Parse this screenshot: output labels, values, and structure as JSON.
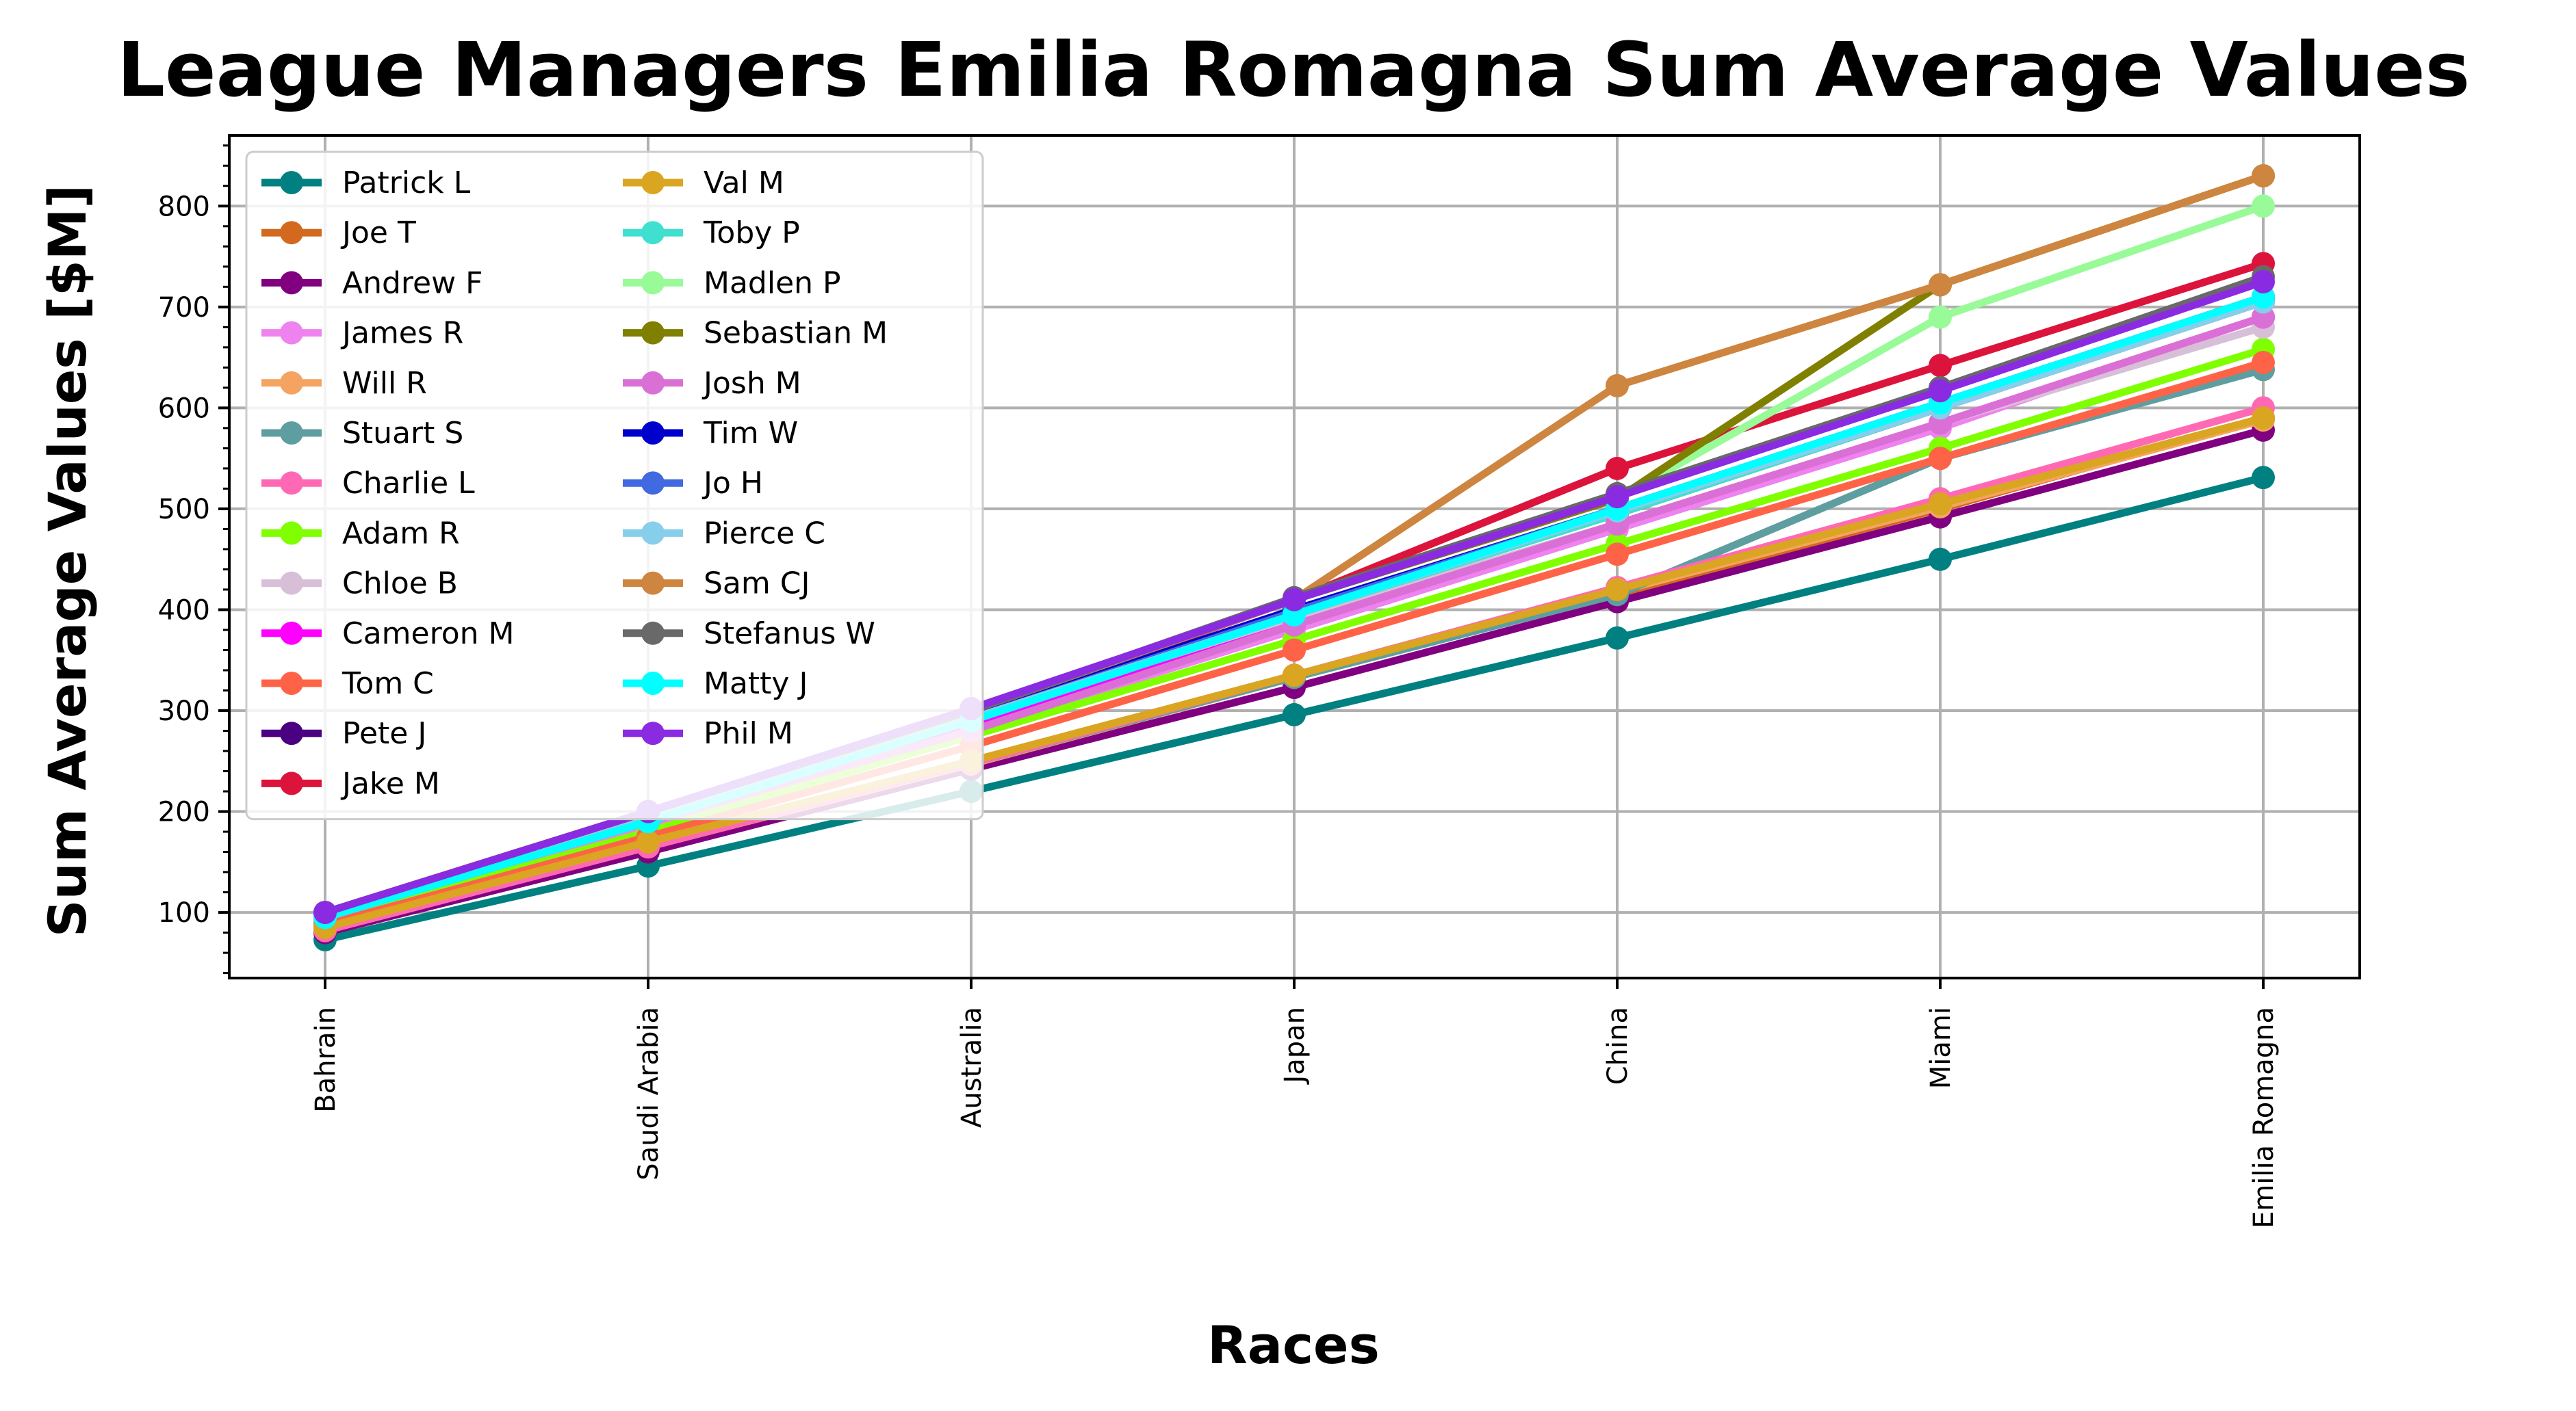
{
  "chart_data": {
    "type": "line",
    "title": "League Managers Emilia Romagna Sum Average Values",
    "xlabel": "Races",
    "ylabel": "Sum Average Values [$M]",
    "x": [
      "Bahrain",
      "Saudi Arabia",
      "Australia",
      "Japan",
      "China",
      "Miami",
      "Emilia Romagna"
    ],
    "ylim": [
      35,
      870
    ],
    "yticks": [
      100,
      200,
      300,
      400,
      500,
      600,
      700,
      800
    ],
    "grid": true,
    "legend_position": "upper-left",
    "legend_columns": 2,
    "series": [
      {
        "name": "Patrick L",
        "color": "#008080",
        "values": [
          73,
          146,
          220,
          296,
          372,
          450,
          531
        ]
      },
      {
        "name": "Joe T",
        "color": "#D2691E",
        "values": [
          85,
          170,
          250,
          335,
          415,
          500,
          590
        ]
      },
      {
        "name": "Andrew F",
        "color": "#800080",
        "values": [
          80,
          160,
          242,
          323,
          408,
          492,
          578
        ]
      },
      {
        "name": "James R",
        "color": "#EE82EE",
        "values": [
          92,
          185,
          280,
          380,
          480,
          580,
          690
        ]
      },
      {
        "name": "Will R",
        "color": "#F4A460",
        "values": [
          83,
          165,
          247,
          333,
          418,
          502,
          588
        ]
      },
      {
        "name": "Stuart S",
        "color": "#5F9EA0",
        "values": [
          84,
          168,
          248,
          333,
          415,
          550,
          638
        ]
      },
      {
        "name": "Charlie L",
        "color": "#FF69B4",
        "values": [
          82,
          165,
          248,
          335,
          422,
          510,
          600
        ]
      },
      {
        "name": "Adam R",
        "color": "#7FFF00",
        "values": [
          90,
          180,
          275,
          370,
          465,
          560,
          658
        ]
      },
      {
        "name": "Chloe B",
        "color": "#D8BFD8",
        "values": [
          98,
          198,
          290,
          390,
          485,
          585,
          680
        ]
      },
      {
        "name": "Cameron M",
        "color": "#FF00FF",
        "values": [
          95,
          190,
          285,
          385,
          485,
          585,
          690
        ]
      },
      {
        "name": "Tom C",
        "color": "#FF6347",
        "values": [
          88,
          175,
          265,
          360,
          455,
          550,
          645
        ]
      },
      {
        "name": "Pete J",
        "color": "#4B0082",
        "values": [
          98,
          195,
          295,
          400,
          495,
          600,
          705
        ]
      },
      {
        "name": "Jake M",
        "color": "#DC143C",
        "values": [
          98,
          198,
          298,
          410,
          540,
          642,
          743
        ]
      },
      {
        "name": "Val M",
        "color": "#DAA520",
        "values": [
          85,
          170,
          250,
          335,
          420,
          505,
          590
        ]
      },
      {
        "name": "Toby P",
        "color": "#40E0D0",
        "values": [
          95,
          190,
          290,
          395,
          495,
          600,
          705
        ]
      },
      {
        "name": "Madlen P",
        "color": "#98FB98",
        "values": [
          100,
          200,
          300,
          410,
          510,
          690,
          800
        ]
      },
      {
        "name": "Sebastian M",
        "color": "#808000",
        "values": [
          100,
          200,
          300,
          410,
          510,
          722,
          830
        ]
      },
      {
        "name": "Josh M",
        "color": "#DA70D6",
        "values": [
          95,
          190,
          280,
          385,
          485,
          585,
          690
        ]
      },
      {
        "name": "Tim W",
        "color": "#0000CD",
        "values": [
          98,
          195,
          295,
          400,
          500,
          605,
          710
        ]
      },
      {
        "name": "Jo H",
        "color": "#4169E1",
        "values": [
          97,
          192,
          292,
          398,
          500,
          603,
          708
        ]
      },
      {
        "name": "Pierce C",
        "color": "#87CEEB",
        "values": [
          96,
          192,
          292,
          395,
          498,
          600,
          705
        ]
      },
      {
        "name": "Sam CJ",
        "color": "#CD853F",
        "values": [
          100,
          200,
          300,
          410,
          622,
          722,
          830
        ]
      },
      {
        "name": "Stefanus W",
        "color": "#696969",
        "values": [
          100,
          200,
          300,
          412,
          515,
          620,
          730
        ]
      },
      {
        "name": "Matty J",
        "color": "#00FFFF",
        "values": [
          95,
          190,
          290,
          395,
          500,
          605,
          710
        ]
      },
      {
        "name": "Phil M",
        "color": "#8A2BE2",
        "values": [
          100,
          200,
          302,
          410,
          512,
          617,
          725
        ]
      }
    ]
  }
}
